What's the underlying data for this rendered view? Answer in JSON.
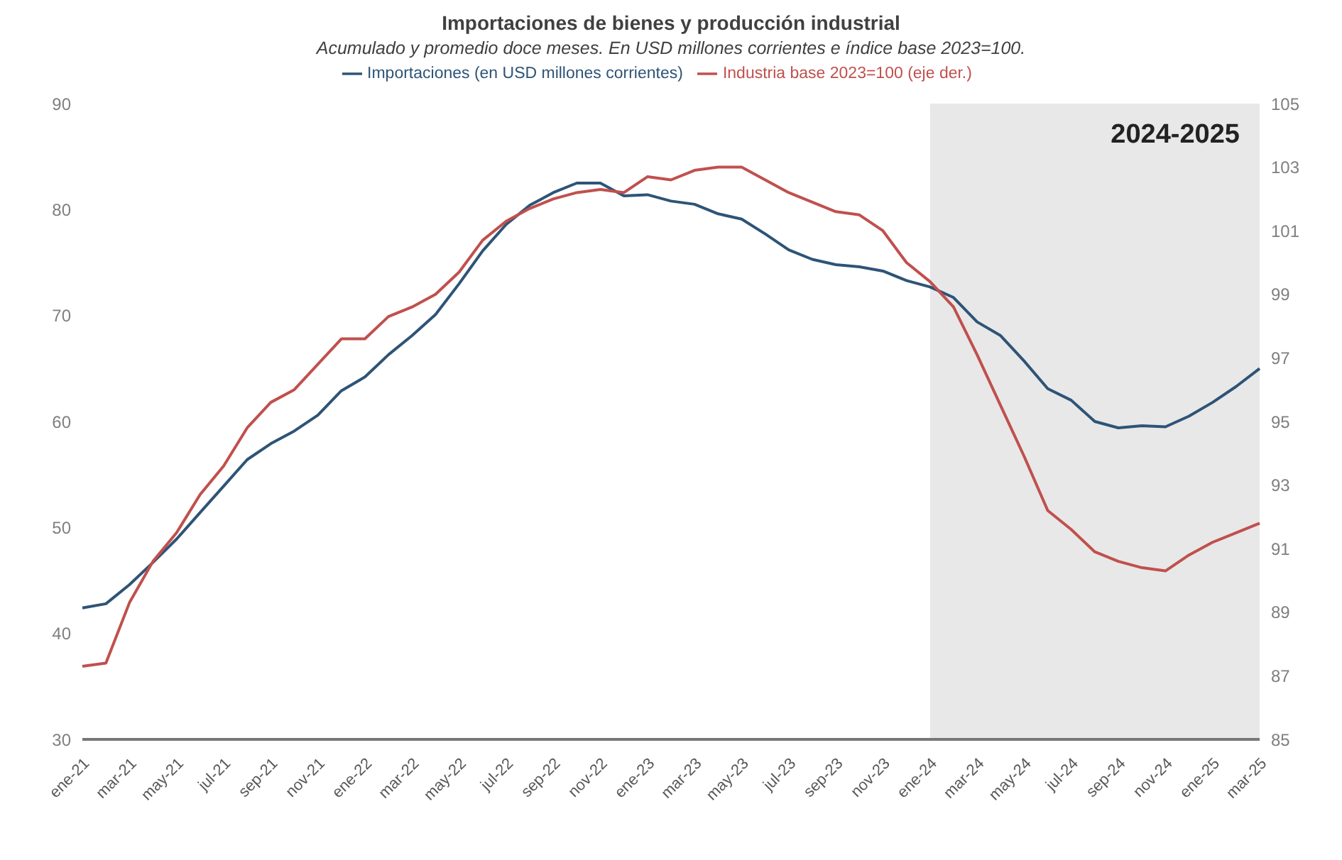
{
  "chart_data": {
    "type": "line",
    "title": "Importaciones de bienes y producción industrial",
    "subtitle": "Acumulado y promedio doce meses. En USD millones corrientes e índice base 2023=100.",
    "categories": [
      "ene-21",
      null,
      "mar-21",
      null,
      "may-21",
      null,
      "jul-21",
      null,
      "sep-21",
      null,
      "nov-21",
      null,
      "ene-22",
      null,
      "mar-22",
      null,
      "may-22",
      null,
      "jul-22",
      null,
      "sep-22",
      null,
      "nov-22",
      null,
      "ene-23",
      null,
      "mar-23",
      null,
      "may-23",
      null,
      "jul-23",
      null,
      "sep-23",
      null,
      "nov-23",
      null,
      "ene-24",
      null,
      "mar-24",
      null,
      "may-24",
      null,
      "jul-24",
      null,
      "sep-24",
      null,
      "nov-24",
      null,
      "ene-25",
      null,
      "mar-25"
    ],
    "series": [
      {
        "name": "Importaciones (en USD millones corrientes)",
        "color": "#2e5477",
        "values": [
          42.4,
          42.8,
          44.6,
          46.7,
          48.9,
          51.4,
          53.9,
          56.4,
          57.9,
          59.1,
          60.6,
          62.9,
          64.2,
          66.3,
          68.1,
          70.1,
          73.0,
          76.1,
          78.6,
          80.4,
          81.6,
          82.5,
          82.5,
          81.3,
          81.4,
          80.8,
          80.5,
          79.6,
          79.1,
          77.7,
          76.2,
          75.3,
          74.8,
          74.6,
          74.2,
          73.3,
          72.7,
          71.7,
          69.4,
          68.1,
          65.7,
          63.1,
          62.0,
          60.0,
          59.4,
          59.6,
          59.5,
          60.5,
          61.8,
          63.3,
          65.0
        ]
      },
      {
        "name": "Industria base 2023=100 (eje der.)",
        "color": "#c0504d",
        "axis": "y2",
        "values": [
          87.3,
          87.4,
          89.3,
          90.6,
          91.5,
          92.7,
          93.6,
          94.8,
          95.6,
          96.0,
          96.8,
          97.6,
          97.6,
          98.3,
          98.6,
          99.0,
          99.7,
          100.7,
          101.3,
          101.7,
          102.0,
          102.2,
          102.3,
          102.2,
          102.7,
          102.6,
          102.9,
          103.0,
          103.0,
          102.6,
          102.2,
          101.9,
          101.6,
          101.5,
          101.0,
          100.0,
          99.4,
          98.6,
          97.1,
          95.5,
          93.9,
          92.2,
          91.6,
          90.9,
          90.6,
          90.4,
          90.3,
          90.8,
          91.2,
          91.5,
          91.8
        ]
      }
    ],
    "ylim": [
      30,
      90
    ],
    "yticks": [
      30,
      40,
      50,
      60,
      70,
      80,
      90
    ],
    "y2lim": [
      85,
      105
    ],
    "y2ticks": [
      85,
      87,
      89,
      91,
      93,
      95,
      97,
      99,
      101,
      103,
      105
    ],
    "bands": [
      {
        "axis": "x",
        "from": "ene-24",
        "to": "mar-25",
        "label": "2024-2025",
        "color": "#e8e8e8"
      }
    ],
    "grid": false,
    "legend": "top",
    "marker": "none",
    "line_style": "solid"
  }
}
